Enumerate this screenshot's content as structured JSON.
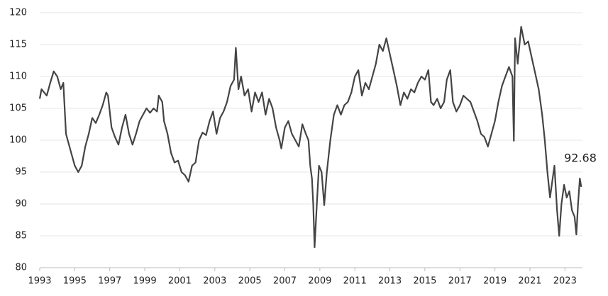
{
  "chart_data": {
    "type": "line",
    "annotation": "92.68",
    "x": [
      1993.0,
      1993.1,
      1993.4,
      1993.6,
      1993.8,
      1994.0,
      1994.2,
      1994.35,
      1994.5,
      1994.8,
      1995.0,
      1995.2,
      1995.4,
      1995.6,
      1995.8,
      1996.0,
      1996.2,
      1996.4,
      1996.6,
      1996.8,
      1996.9,
      1997.1,
      1997.3,
      1997.5,
      1997.7,
      1997.9,
      1998.1,
      1998.3,
      1998.5,
      1998.7,
      1998.9,
      1999.1,
      1999.3,
      1999.5,
      1999.7,
      1999.8,
      2000.0,
      2000.1,
      2000.3,
      2000.5,
      2000.7,
      2000.9,
      2001.1,
      2001.3,
      2001.5,
      2001.7,
      2001.9,
      2002.1,
      2002.3,
      2002.5,
      2002.7,
      2002.9,
      2003.1,
      2003.3,
      2003.5,
      2003.7,
      2003.9,
      2004.1,
      2004.2,
      2004.35,
      2004.5,
      2004.7,
      2004.9,
      2005.1,
      2005.3,
      2005.5,
      2005.7,
      2005.9,
      2006.1,
      2006.3,
      2006.5,
      2006.7,
      2006.8,
      2007.0,
      2007.2,
      2007.4,
      2007.6,
      2007.8,
      2008.0,
      2008.2,
      2008.35,
      2008.45,
      2008.55,
      2008.62,
      2008.7,
      2008.85,
      2008.95,
      2009.1,
      2009.25,
      2009.4,
      2009.6,
      2009.8,
      2010.0,
      2010.2,
      2010.4,
      2010.6,
      2010.8,
      2011.0,
      2011.2,
      2011.4,
      2011.6,
      2011.8,
      2012.0,
      2012.2,
      2012.4,
      2012.6,
      2012.8,
      2013.0,
      2013.2,
      2013.4,
      2013.6,
      2013.8,
      2014.0,
      2014.2,
      2014.4,
      2014.6,
      2014.8,
      2015.0,
      2015.2,
      2015.35,
      2015.5,
      2015.7,
      2015.9,
      2016.1,
      2016.25,
      2016.45,
      2016.6,
      2016.8,
      2017.0,
      2017.2,
      2017.4,
      2017.6,
      2017.8,
      2018.0,
      2018.2,
      2018.4,
      2018.6,
      2018.8,
      2019.0,
      2019.2,
      2019.4,
      2019.6,
      2019.8,
      2020.0,
      2020.08,
      2020.15,
      2020.3,
      2020.5,
      2020.7,
      2020.9,
      2021.1,
      2021.3,
      2021.5,
      2021.7,
      2021.85,
      2022.0,
      2022.15,
      2022.3,
      2022.4,
      2022.55,
      2022.67,
      2022.8,
      2022.95,
      2023.1,
      2023.25,
      2023.4,
      2023.55,
      2023.65,
      2023.75,
      2023.85,
      2023.93
    ],
    "series": [
      {
        "color": "#444444",
        "values": [
          106.5,
          108,
          107,
          109,
          110.8,
          110,
          108,
          109,
          101,
          98,
          96,
          95,
          96,
          99,
          101,
          103.5,
          102.7,
          104,
          105.5,
          107.5,
          107,
          102,
          100.5,
          99.3,
          102,
          104,
          101,
          99.3,
          101,
          103,
          104,
          105,
          104.3,
          105,
          104.5,
          107,
          106,
          103,
          101,
          98,
          96.5,
          96.8,
          95,
          94.5,
          93.5,
          96,
          96.5,
          100,
          101.2,
          100.8,
          103,
          104.5,
          101,
          103.5,
          104.5,
          106,
          108.5,
          109.5,
          114.5,
          108,
          110,
          107,
          108,
          104.5,
          107.5,
          106,
          107.5,
          104,
          106.5,
          105,
          102,
          100,
          98.7,
          102,
          103,
          101,
          100,
          99,
          102.5,
          101,
          100,
          96,
          94,
          90,
          83.2,
          91,
          96,
          95,
          89.8,
          95,
          100,
          104,
          105.5,
          104,
          105.5,
          106,
          107.5,
          110,
          111,
          107,
          109,
          108,
          110,
          112,
          115,
          114,
          116,
          113.5,
          111,
          108.5,
          105.5,
          107.5,
          106.5,
          108,
          107.5,
          109,
          110,
          109.5,
          111,
          106,
          105.5,
          106.5,
          105,
          106,
          109.5,
          111,
          106,
          104.5,
          105.5,
          107,
          106.5,
          106,
          104.5,
          103,
          101,
          100.5,
          99,
          101,
          103,
          106,
          108.5,
          110,
          111.5,
          110,
          99.9,
          116,
          112,
          117.8,
          115,
          115.5,
          113,
          110.5,
          108,
          104,
          100,
          95,
          91,
          94,
          96,
          89,
          85,
          90,
          93,
          91,
          92,
          89,
          88,
          85.2,
          90,
          94,
          92.68
        ]
      }
    ],
    "xlim": [
      1993,
      2024
    ],
    "xticks": [
      1993,
      1995,
      1997,
      1999,
      2001,
      2003,
      2005,
      2007,
      2009,
      2011,
      2013,
      2015,
      2017,
      2019,
      2021,
      2023
    ],
    "ylim": [
      80,
      120
    ],
    "yticks": [
      80,
      85,
      90,
      95,
      100,
      105,
      110,
      115,
      120
    ],
    "grid": true
  }
}
